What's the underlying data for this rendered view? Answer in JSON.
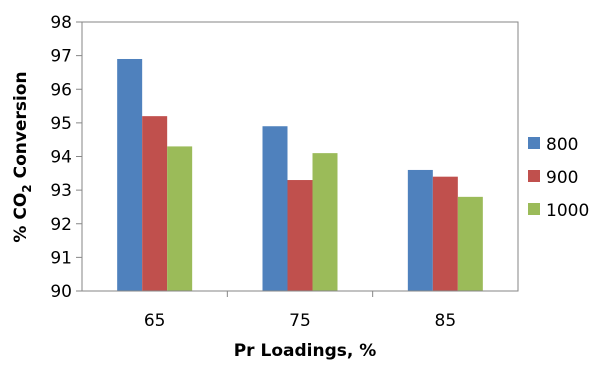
{
  "chart_data": {
    "type": "bar",
    "title": "",
    "xlabel": "Pr Loadings, %",
    "ylabel_parts": {
      "pre": "% CO",
      "sub": "2",
      "post": " Conversion"
    },
    "categories": [
      "65",
      "75",
      "85"
    ],
    "series": [
      {
        "name": "800",
        "color": "#4F81BD",
        "values": [
          96.9,
          94.9,
          93.6
        ]
      },
      {
        "name": "900",
        "color": "#C0504D",
        "values": [
          95.2,
          93.3,
          93.4
        ]
      },
      {
        "name": "1000",
        "color": "#9BBB59",
        "values": [
          94.3,
          94.1,
          92.8
        ]
      }
    ],
    "ylim": [
      90,
      98
    ],
    "yticks": [
      90,
      91,
      92,
      93,
      94,
      95,
      96,
      97,
      98
    ],
    "grid": false,
    "legend": "right"
  }
}
